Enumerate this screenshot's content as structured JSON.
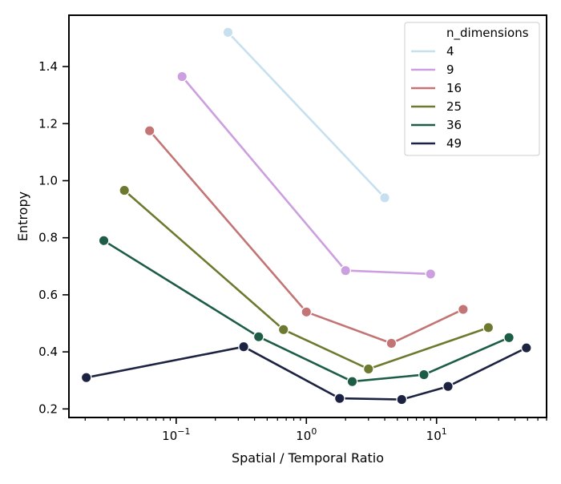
{
  "chart_data": {
    "type": "line",
    "title": "",
    "xlabel": "Spatial / Temporal Ratio",
    "ylabel": "Entropy",
    "xscale": "log",
    "xlim": [
      0.015,
      70
    ],
    "ylim": [
      0.17,
      1.58
    ],
    "xticks": [
      {
        "value": 0.1,
        "base": "10",
        "exp": "−1"
      },
      {
        "value": 1,
        "base": "10",
        "exp": "0"
      },
      {
        "value": 10,
        "base": "10",
        "exp": "1"
      }
    ],
    "yticks": [
      {
        "value": 0.2,
        "label": "0.2"
      },
      {
        "value": 0.4,
        "label": "0.4"
      },
      {
        "value": 0.6,
        "label": "0.6"
      },
      {
        "value": 0.8,
        "label": "0.8"
      },
      {
        "value": 1.0,
        "label": "1.0"
      },
      {
        "value": 1.2,
        "label": "1.2"
      },
      {
        "value": 1.4,
        "label": "1.4"
      }
    ],
    "legend": {
      "title": "n_dimensions",
      "placement": "top-right"
    },
    "series": [
      {
        "name": "4",
        "color": "#c6e0ef",
        "x": [
          0.25,
          4.0
        ],
        "y": [
          1.52,
          0.94
        ]
      },
      {
        "name": "9",
        "color": "#cc9fe0",
        "x": [
          0.111,
          2.0,
          9.0
        ],
        "y": [
          1.365,
          0.685,
          0.673
        ]
      },
      {
        "name": "16",
        "color": "#c37575",
        "x": [
          0.0625,
          1.0,
          4.5,
          16.0
        ],
        "y": [
          1.175,
          0.54,
          0.43,
          0.549
        ]
      },
      {
        "name": "25",
        "color": "#6c7a2f",
        "x": [
          0.04,
          0.667,
          3.0,
          25.0
        ],
        "y": [
          0.966,
          0.478,
          0.34,
          0.485
        ]
      },
      {
        "name": "36",
        "color": "#1d5c45",
        "x": [
          0.0278,
          0.43,
          2.25,
          8.0,
          36.0
        ],
        "y": [
          0.79,
          0.453,
          0.296,
          0.32,
          0.45
        ]
      },
      {
        "name": "49",
        "color": "#1c2241",
        "x": [
          0.0204,
          0.33,
          1.8,
          5.4,
          12.25,
          49.0
        ],
        "y": [
          0.31,
          0.418,
          0.237,
          0.233,
          0.279,
          0.414
        ]
      }
    ]
  }
}
